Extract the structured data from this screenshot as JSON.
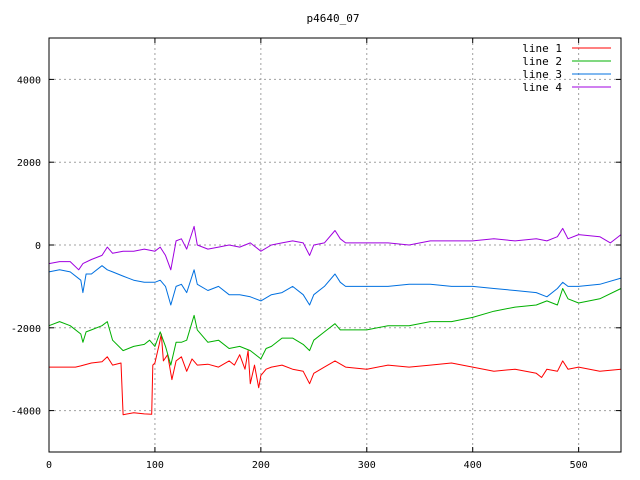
{
  "chart_data": {
    "type": "line",
    "title": "p4640_07",
    "xlabel": "",
    "ylabel": "",
    "xlim": [
      0,
      540
    ],
    "ylim": [
      -5000,
      5000
    ],
    "x_ticks": [
      0,
      100,
      200,
      300,
      400,
      500
    ],
    "y_ticks": [
      -4000,
      -2000,
      0,
      2000,
      4000
    ],
    "grid": true,
    "legend_position": "top-right",
    "series": [
      {
        "name": "line 1",
        "color": "#ff0000",
        "points": [
          [
            0,
            -2950
          ],
          [
            25,
            -2950
          ],
          [
            30,
            -2920
          ],
          [
            40,
            -2850
          ],
          [
            50,
            -2820
          ],
          [
            55,
            -2700
          ],
          [
            60,
            -2900
          ],
          [
            68,
            -2850
          ],
          [
            70,
            -4100
          ],
          [
            80,
            -4050
          ],
          [
            90,
            -4080
          ],
          [
            97,
            -4090
          ],
          [
            98,
            -2900
          ],
          [
            100,
            -2850
          ],
          [
            104,
            -2400
          ],
          [
            106,
            -2150
          ],
          [
            108,
            -2800
          ],
          [
            112,
            -2650
          ],
          [
            116,
            -3250
          ],
          [
            120,
            -2800
          ],
          [
            125,
            -2700
          ],
          [
            130,
            -3050
          ],
          [
            135,
            -2750
          ],
          [
            140,
            -2900
          ],
          [
            150,
            -2880
          ],
          [
            160,
            -2950
          ],
          [
            170,
            -2800
          ],
          [
            175,
            -2900
          ],
          [
            180,
            -2650
          ],
          [
            185,
            -3000
          ],
          [
            188,
            -2550
          ],
          [
            190,
            -3350
          ],
          [
            194,
            -2900
          ],
          [
            198,
            -3450
          ],
          [
            200,
            -3150
          ],
          [
            205,
            -3000
          ],
          [
            210,
            -2950
          ],
          [
            220,
            -2900
          ],
          [
            230,
            -3000
          ],
          [
            240,
            -3050
          ],
          [
            246,
            -3350
          ],
          [
            250,
            -3100
          ],
          [
            260,
            -2950
          ],
          [
            270,
            -2800
          ],
          [
            280,
            -2950
          ],
          [
            300,
            -3000
          ],
          [
            320,
            -2900
          ],
          [
            340,
            -2950
          ],
          [
            360,
            -2900
          ],
          [
            380,
            -2850
          ],
          [
            400,
            -2950
          ],
          [
            420,
            -3050
          ],
          [
            440,
            -3000
          ],
          [
            460,
            -3100
          ],
          [
            465,
            -3200
          ],
          [
            470,
            -3000
          ],
          [
            480,
            -3050
          ],
          [
            485,
            -2800
          ],
          [
            490,
            -3000
          ],
          [
            500,
            -2950
          ],
          [
            520,
            -3050
          ],
          [
            540,
            -3000
          ]
        ]
      },
      {
        "name": "line 2",
        "color": "#00b000",
        "points": [
          [
            0,
            -1950
          ],
          [
            10,
            -1850
          ],
          [
            20,
            -1950
          ],
          [
            30,
            -2150
          ],
          [
            32,
            -2350
          ],
          [
            35,
            -2100
          ],
          [
            40,
            -2050
          ],
          [
            50,
            -1950
          ],
          [
            55,
            -1850
          ],
          [
            60,
            -2300
          ],
          [
            70,
            -2550
          ],
          [
            80,
            -2450
          ],
          [
            90,
            -2400
          ],
          [
            95,
            -2300
          ],
          [
            100,
            -2450
          ],
          [
            105,
            -2100
          ],
          [
            110,
            -2450
          ],
          [
            115,
            -2900
          ],
          [
            120,
            -2350
          ],
          [
            125,
            -2350
          ],
          [
            130,
            -2300
          ],
          [
            137,
            -1700
          ],
          [
            140,
            -2050
          ],
          [
            150,
            -2350
          ],
          [
            160,
            -2300
          ],
          [
            170,
            -2500
          ],
          [
            180,
            -2450
          ],
          [
            190,
            -2550
          ],
          [
            200,
            -2750
          ],
          [
            205,
            -2500
          ],
          [
            210,
            -2450
          ],
          [
            220,
            -2250
          ],
          [
            230,
            -2250
          ],
          [
            240,
            -2400
          ],
          [
            246,
            -2550
          ],
          [
            250,
            -2300
          ],
          [
            260,
            -2100
          ],
          [
            270,
            -1900
          ],
          [
            275,
            -2050
          ],
          [
            280,
            -2050
          ],
          [
            300,
            -2050
          ],
          [
            320,
            -1950
          ],
          [
            340,
            -1950
          ],
          [
            360,
            -1850
          ],
          [
            380,
            -1850
          ],
          [
            400,
            -1750
          ],
          [
            420,
            -1600
          ],
          [
            440,
            -1500
          ],
          [
            460,
            -1450
          ],
          [
            470,
            -1350
          ],
          [
            480,
            -1450
          ],
          [
            485,
            -1050
          ],
          [
            490,
            -1300
          ],
          [
            500,
            -1400
          ],
          [
            520,
            -1300
          ],
          [
            540,
            -1050
          ]
        ]
      },
      {
        "name": "line 3",
        "color": "#0070e0",
        "points": [
          [
            0,
            -650
          ],
          [
            10,
            -600
          ],
          [
            20,
            -650
          ],
          [
            30,
            -850
          ],
          [
            32,
            -1150
          ],
          [
            35,
            -700
          ],
          [
            40,
            -700
          ],
          [
            50,
            -500
          ],
          [
            55,
            -600
          ],
          [
            60,
            -650
          ],
          [
            70,
            -750
          ],
          [
            80,
            -850
          ],
          [
            90,
            -900
          ],
          [
            100,
            -900
          ],
          [
            105,
            -850
          ],
          [
            110,
            -1000
          ],
          [
            115,
            -1450
          ],
          [
            120,
            -1000
          ],
          [
            125,
            -950
          ],
          [
            130,
            -1150
          ],
          [
            137,
            -600
          ],
          [
            140,
            -950
          ],
          [
            150,
            -1100
          ],
          [
            160,
            -1000
          ],
          [
            170,
            -1200
          ],
          [
            180,
            -1200
          ],
          [
            190,
            -1250
          ],
          [
            200,
            -1350
          ],
          [
            210,
            -1200
          ],
          [
            220,
            -1150
          ],
          [
            230,
            -1000
          ],
          [
            240,
            -1200
          ],
          [
            246,
            -1450
          ],
          [
            250,
            -1200
          ],
          [
            260,
            -1000
          ],
          [
            270,
            -700
          ],
          [
            275,
            -900
          ],
          [
            280,
            -1000
          ],
          [
            300,
            -1000
          ],
          [
            320,
            -1000
          ],
          [
            340,
            -950
          ],
          [
            360,
            -950
          ],
          [
            380,
            -1000
          ],
          [
            400,
            -1000
          ],
          [
            420,
            -1050
          ],
          [
            440,
            -1100
          ],
          [
            460,
            -1150
          ],
          [
            470,
            -1250
          ],
          [
            480,
            -1050
          ],
          [
            485,
            -900
          ],
          [
            490,
            -1000
          ],
          [
            500,
            -1000
          ],
          [
            520,
            -950
          ],
          [
            540,
            -800
          ]
        ]
      },
      {
        "name": "line 4",
        "color": "#a000e0",
        "points": [
          [
            0,
            -450
          ],
          [
            10,
            -400
          ],
          [
            20,
            -400
          ],
          [
            28,
            -600
          ],
          [
            32,
            -450
          ],
          [
            40,
            -350
          ],
          [
            50,
            -250
          ],
          [
            55,
            -50
          ],
          [
            60,
            -200
          ],
          [
            70,
            -150
          ],
          [
            80,
            -150
          ],
          [
            90,
            -100
          ],
          [
            100,
            -150
          ],
          [
            105,
            -50
          ],
          [
            110,
            -250
          ],
          [
            115,
            -600
          ],
          [
            120,
            100
          ],
          [
            125,
            150
          ],
          [
            130,
            -100
          ],
          [
            137,
            450
          ],
          [
            140,
            0
          ],
          [
            150,
            -100
          ],
          [
            160,
            -50
          ],
          [
            170,
            0
          ],
          [
            180,
            -50
          ],
          [
            190,
            50
          ],
          [
            200,
            -150
          ],
          [
            210,
            0
          ],
          [
            220,
            50
          ],
          [
            230,
            100
          ],
          [
            240,
            50
          ],
          [
            246,
            -250
          ],
          [
            250,
            0
          ],
          [
            260,
            50
          ],
          [
            270,
            350
          ],
          [
            275,
            150
          ],
          [
            280,
            50
          ],
          [
            300,
            50
          ],
          [
            320,
            50
          ],
          [
            340,
            0
          ],
          [
            360,
            100
          ],
          [
            380,
            100
          ],
          [
            400,
            100
          ],
          [
            420,
            150
          ],
          [
            440,
            100
          ],
          [
            460,
            150
          ],
          [
            470,
            100
          ],
          [
            480,
            200
          ],
          [
            485,
            400
          ],
          [
            490,
            150
          ],
          [
            500,
            250
          ],
          [
            520,
            200
          ],
          [
            530,
            50
          ],
          [
            540,
            250
          ]
        ]
      }
    ]
  }
}
